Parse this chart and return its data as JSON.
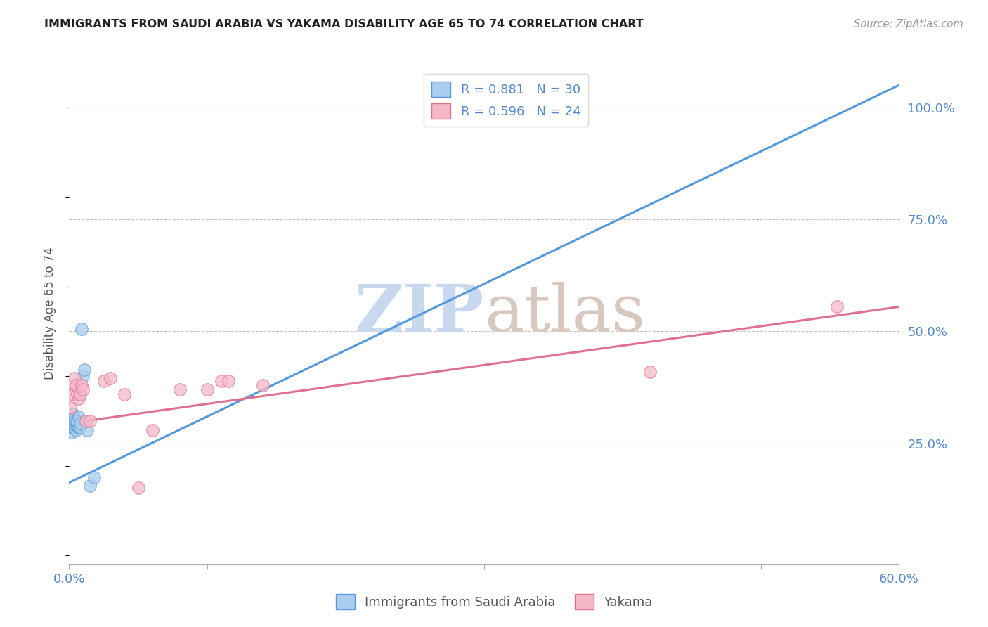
{
  "title": "IMMIGRANTS FROM SAUDI ARABIA VS YAKAMA DISABILITY AGE 65 TO 74 CORRELATION CHART",
  "source": "Source: ZipAtlas.com",
  "ylabel": "Disability Age 65 to 74",
  "xlim": [
    0.0,
    0.6
  ],
  "ylim": [
    -0.02,
    1.1
  ],
  "blue_scatter_x": [
    0.001,
    0.001,
    0.001,
    0.002,
    0.002,
    0.002,
    0.002,
    0.002,
    0.003,
    0.003,
    0.003,
    0.003,
    0.004,
    0.004,
    0.004,
    0.005,
    0.005,
    0.005,
    0.006,
    0.006,
    0.007,
    0.007,
    0.008,
    0.008,
    0.009,
    0.01,
    0.011,
    0.013,
    0.015,
    0.018
  ],
  "blue_scatter_y": [
    0.285,
    0.295,
    0.305,
    0.275,
    0.285,
    0.295,
    0.3,
    0.31,
    0.285,
    0.295,
    0.305,
    0.315,
    0.285,
    0.295,
    0.305,
    0.28,
    0.29,
    0.3,
    0.29,
    0.3,
    0.285,
    0.31,
    0.285,
    0.295,
    0.505,
    0.4,
    0.415,
    0.28,
    0.155,
    0.175
  ],
  "pink_scatter_x": [
    0.001,
    0.002,
    0.003,
    0.004,
    0.005,
    0.006,
    0.007,
    0.008,
    0.009,
    0.01,
    0.012,
    0.015,
    0.025,
    0.03,
    0.04,
    0.05,
    0.06,
    0.08,
    0.1,
    0.11,
    0.115,
    0.14,
    0.42,
    0.555
  ],
  "pink_scatter_y": [
    0.33,
    0.37,
    0.36,
    0.395,
    0.38,
    0.36,
    0.35,
    0.36,
    0.38,
    0.37,
    0.3,
    0.3,
    0.39,
    0.395,
    0.36,
    0.15,
    0.28,
    0.37,
    0.37,
    0.39,
    0.39,
    0.38,
    0.41,
    0.555
  ],
  "blue_line_x": [
    -0.005,
    0.6
  ],
  "blue_line_y": [
    0.155,
    1.05
  ],
  "pink_line_x": [
    0.0,
    0.6
  ],
  "pink_line_y": [
    0.295,
    0.555
  ],
  "title_color": "#222222",
  "axis_color": "#5588cc",
  "grid_color": "#bbbbcc",
  "blue_dot_color": "#aaccee",
  "pink_dot_color": "#f5b8c8",
  "blue_line_color": "#5599dd",
  "pink_line_color": "#e07090",
  "watermark_zip_color": "#c8d8ee",
  "watermark_atlas_color": "#d8c8c0",
  "watermark_fontsize": 68,
  "legend_r1": "R = 0.881   N = 30",
  "legend_r2": "R = 0.596   N = 24",
  "legend1_label": "Immigrants from Saudi Arabia",
  "legend2_label": "Yakama"
}
